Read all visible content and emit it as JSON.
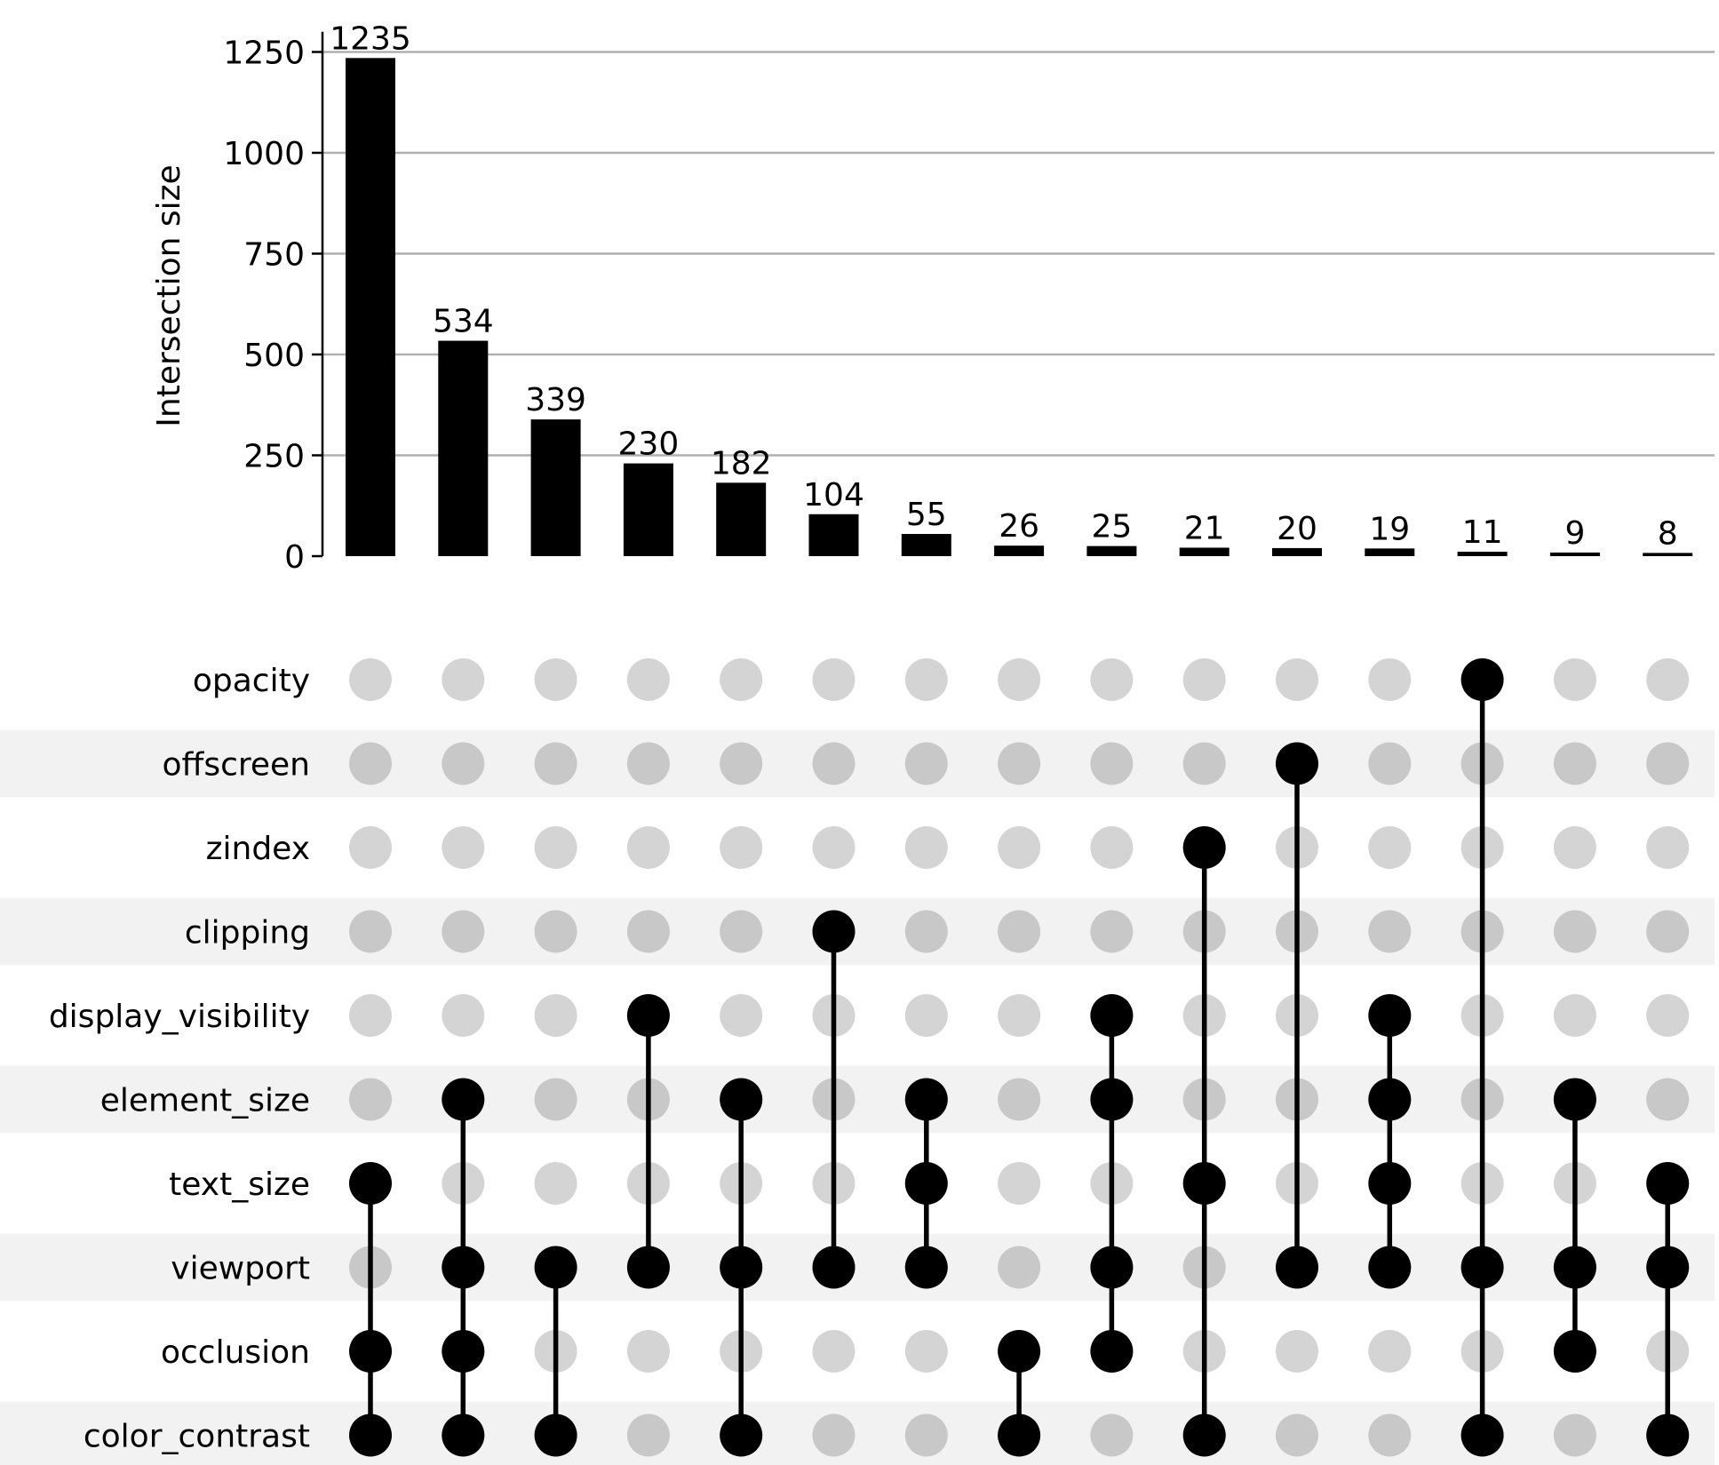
{
  "chart_data": {
    "type": "upset",
    "ylabel": "Intersection size",
    "ylim": [
      0,
      1300
    ],
    "yticks": [
      0,
      250,
      500,
      750,
      1000,
      1250
    ],
    "grid": true,
    "sets": [
      "opacity",
      "offscreen",
      "zindex",
      "clipping",
      "display_visibility",
      "element_size",
      "text_size",
      "viewport",
      "occlusion",
      "color_contrast"
    ],
    "values": [
      1235,
      534,
      339,
      230,
      182,
      104,
      55,
      26,
      25,
      21,
      20,
      19,
      11,
      9,
      8
    ],
    "intersections": [
      [
        "text_size",
        "occlusion",
        "color_contrast"
      ],
      [
        "element_size",
        "viewport",
        "occlusion",
        "color_contrast"
      ],
      [
        "viewport",
        "color_contrast"
      ],
      [
        "display_visibility",
        "viewport"
      ],
      [
        "element_size",
        "viewport",
        "color_contrast"
      ],
      [
        "clipping",
        "viewport"
      ],
      [
        "element_size",
        "text_size",
        "viewport"
      ],
      [
        "occlusion",
        "color_contrast"
      ],
      [
        "display_visibility",
        "element_size",
        "viewport",
        "occlusion"
      ],
      [
        "zindex",
        "text_size",
        "color_contrast"
      ],
      [
        "offscreen",
        "viewport"
      ],
      [
        "display_visibility",
        "element_size",
        "text_size",
        "viewport"
      ],
      [
        "opacity",
        "viewport",
        "color_contrast"
      ],
      [
        "element_size",
        "viewport",
        "occlusion"
      ],
      [
        "text_size",
        "viewport",
        "color_contrast"
      ]
    ]
  }
}
